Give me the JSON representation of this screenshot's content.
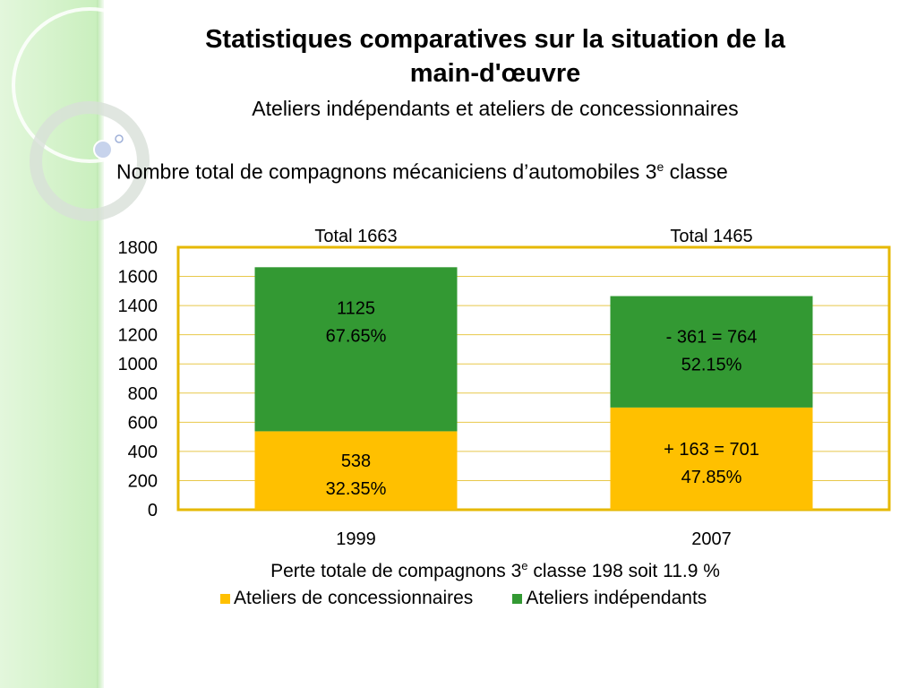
{
  "title_line1": "Statistiques comparatives sur la situation de la",
  "title_line2": "main-d'œuvre",
  "subtitle": "Ateliers indépendants et ateliers de concessionnaires",
  "chart_heading": {
    "prefix": "Nombre total de compagnons mécaniciens d’automobiles 3",
    "sup": "e",
    "suffix": " classe"
  },
  "footer": {
    "prefix": "Perte totale de compagnons 3",
    "sup": "e",
    "suffix": " classe 198 soit 11.9 %"
  },
  "legend": [
    {
      "label": "Ateliers de concessionnaires",
      "color": "#ffc000"
    },
    {
      "label": "Ateliers indépendants",
      "color": "#339933"
    }
  ],
  "chart_data": {
    "type": "bar",
    "stacked": true,
    "categories": [
      "1999",
      "2007"
    ],
    "ylim": [
      0,
      1800
    ],
    "yticks": [
      "0",
      "200",
      "400",
      "600",
      "800",
      "1000",
      "1200",
      "1400",
      "1600",
      "1800"
    ],
    "grid": true,
    "series": [
      {
        "name": "Ateliers de concessionnaires",
        "color": "#ffc000",
        "values": [
          538,
          701
        ],
        "labels": [
          [
            "538",
            "32.35%"
          ],
          [
            "+ 163  = 701",
            "47.85%"
          ]
        ]
      },
      {
        "name": "Ateliers indépendants",
        "color": "#339933",
        "values": [
          1125,
          764
        ],
        "labels": [
          [
            "1125",
            "67.65%"
          ],
          [
            "- 361 = 764",
            "52.15%"
          ]
        ]
      }
    ],
    "totals": [
      {
        "label": "Total",
        "value": "1663"
      },
      {
        "label": "Total",
        "value": "1465"
      }
    ],
    "plot_border_color": "#e6b800",
    "grid_color": "#e8c84a"
  }
}
